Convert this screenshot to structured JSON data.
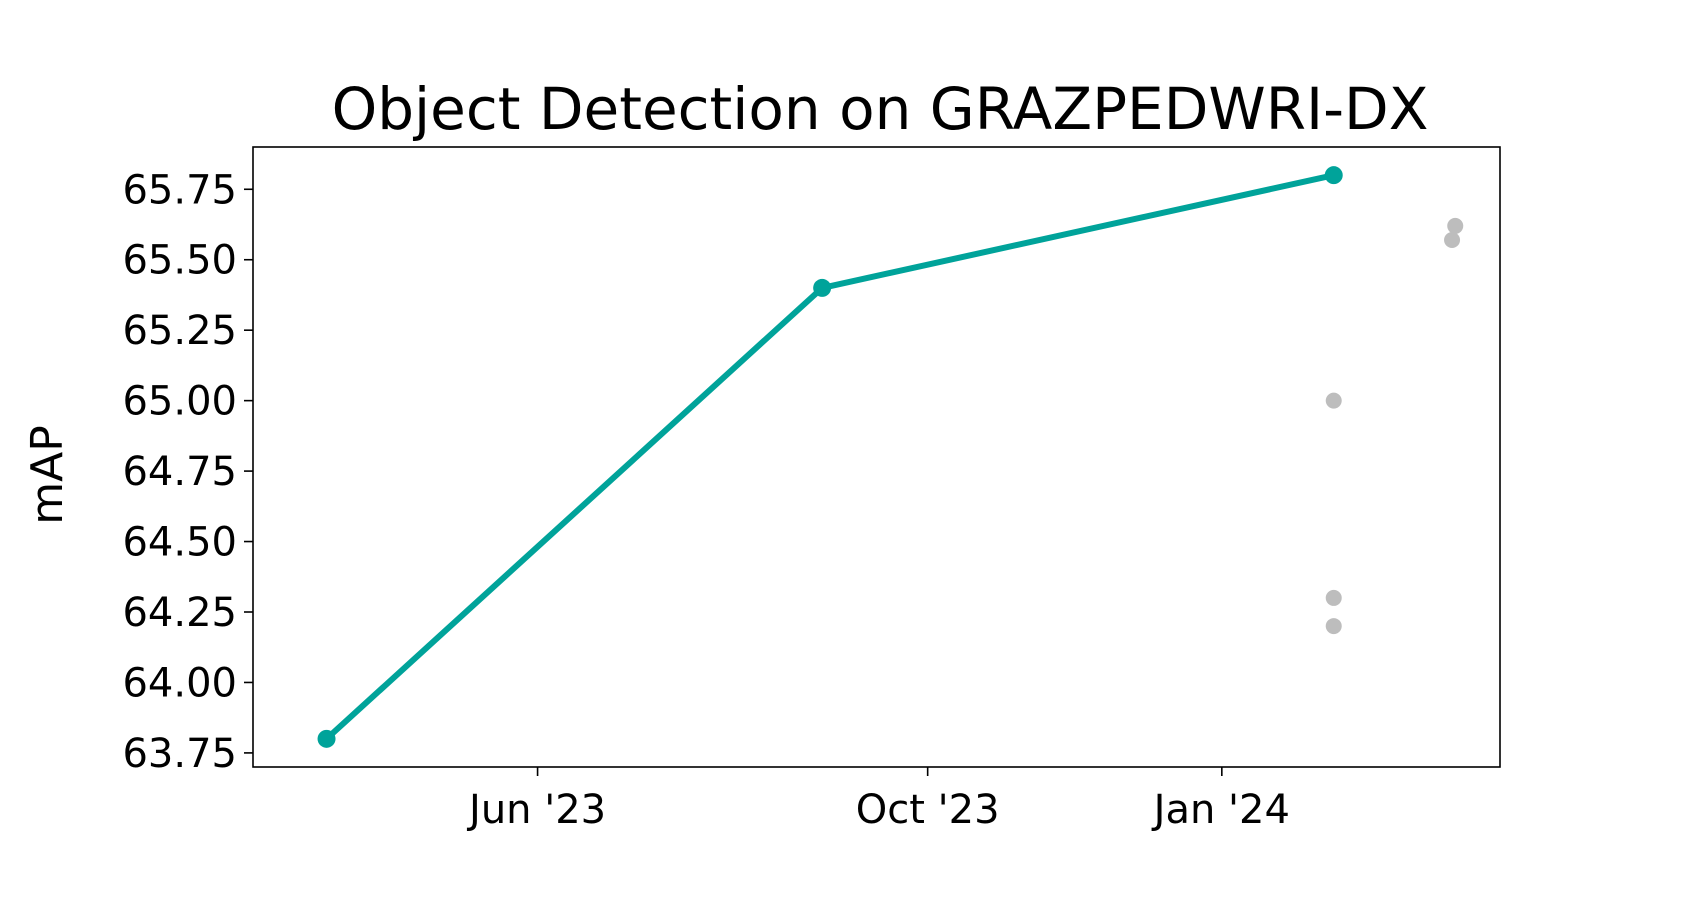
{
  "chart_data": {
    "type": "line",
    "title": "Object Detection on GRAZPEDWRI-DX",
    "xlabel": "",
    "ylabel": "mAP",
    "x_axis_type": "date",
    "xlim": [
      "2023-03-04",
      "2024-03-28"
    ],
    "ylim": [
      63.7,
      65.9
    ],
    "x_ticks": [
      {
        "date": "2023-06-01",
        "label": "Jun '23"
      },
      {
        "date": "2023-10-01",
        "label": "Oct '23"
      },
      {
        "date": "2024-01-01",
        "label": "Jan '24"
      }
    ],
    "y_ticks": [
      63.75,
      64.0,
      64.25,
      64.5,
      64.75,
      65.0,
      65.25,
      65.5,
      65.75
    ],
    "grid": false,
    "series": [
      {
        "role": "state-of-the-art",
        "color": "#00A39A",
        "points": [
          {
            "x": "2023-03-27",
            "y": 63.8
          },
          {
            "x": "2023-08-29",
            "y": 65.4
          },
          {
            "x": "2024-02-05",
            "y": 65.8
          }
        ]
      },
      {
        "role": "other-results",
        "color": "#BDBDBD",
        "points": [
          {
            "x": "2024-02-05",
            "y": 65.0
          },
          {
            "x": "2024-02-05",
            "y": 64.3
          },
          {
            "x": "2024-02-05",
            "y": 64.2
          },
          {
            "x": "2024-03-14",
            "y": 65.62
          },
          {
            "x": "2024-03-13",
            "y": 65.57
          }
        ]
      }
    ]
  }
}
